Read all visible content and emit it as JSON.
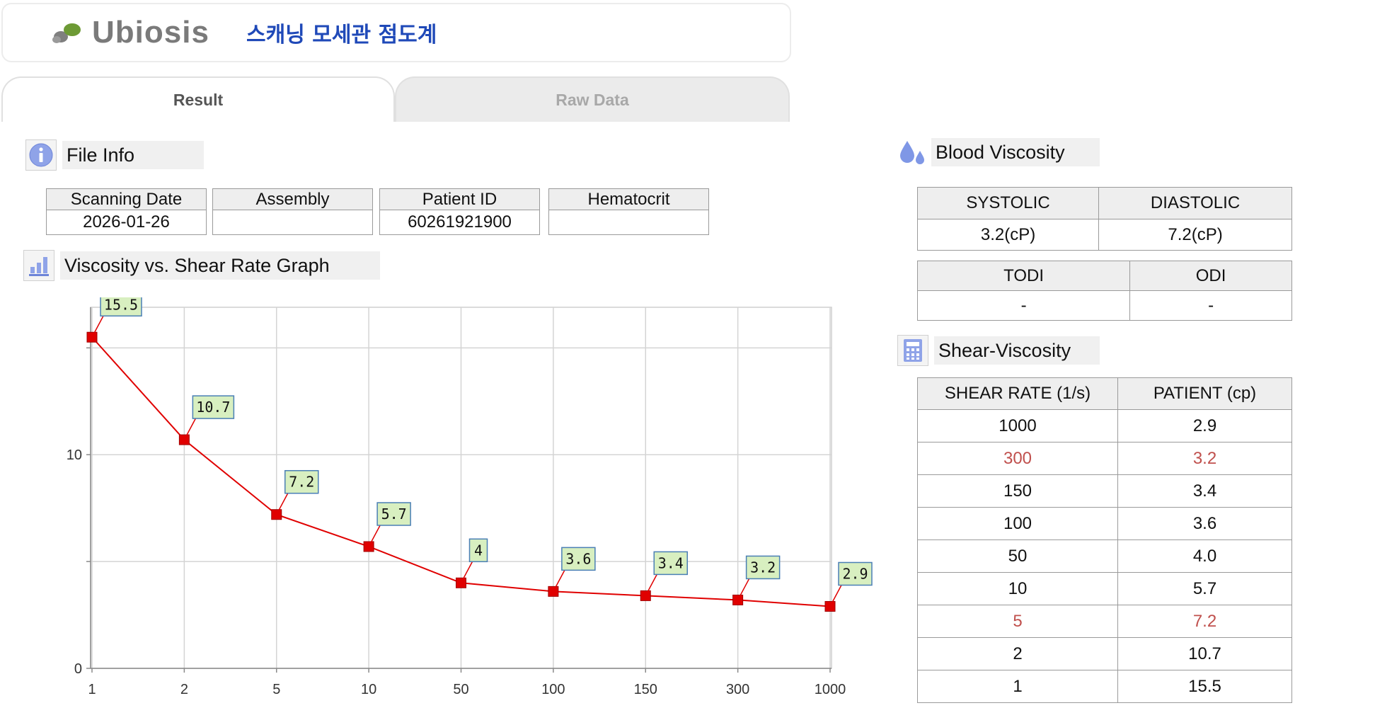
{
  "header": {
    "logo_text": "Ubiosis",
    "app_title": "스캐닝 모세관 점도계"
  },
  "tabs": [
    {
      "label": "Result",
      "active": true
    },
    {
      "label": "Raw Data",
      "active": false
    }
  ],
  "file_info": {
    "title": "File Info",
    "columns": [
      "Scanning Date",
      "Assembly",
      "Patient ID",
      "Hematocrit"
    ],
    "values": [
      "2026-01-26",
      "",
      "60261921900",
      ""
    ]
  },
  "graph_section": {
    "title": "Viscosity vs. Shear Rate Graph"
  },
  "chart_data": {
    "type": "line",
    "x_axis_type": "categorical",
    "categories": [
      "1",
      "2",
      "5",
      "10",
      "50",
      "100",
      "150",
      "300",
      "1000"
    ],
    "series": [
      {
        "values": [
          15.5,
          10.7,
          7.2,
          5.7,
          4,
          3.6,
          3.4,
          3.2,
          2.9
        ],
        "color": "#e00000"
      }
    ],
    "data_labels": [
      "15.5",
      "10.7",
      "7.2",
      "5.7",
      "4",
      "3.6",
      "3.4",
      "3.2",
      "2.9"
    ],
    "y_ticks": [
      "0",
      "10"
    ],
    "ylim": [
      0,
      16.9
    ],
    "grid": true,
    "title": "",
    "xlabel": "",
    "ylabel": ""
  },
  "blood_viscosity": {
    "title": "Blood Viscosity",
    "headers1": [
      "SYSTOLIC",
      "DIASTOLIC"
    ],
    "values1": [
      "3.2(cP)",
      "7.2(cP)"
    ],
    "headers2": [
      "TODI",
      "ODI"
    ],
    "values2": [
      "-",
      "-"
    ]
  },
  "shear_viscosity": {
    "title": "Shear-Viscosity",
    "headers": [
      "SHEAR RATE (1/s)",
      "PATIENT (cp)"
    ],
    "rows": [
      {
        "rate": "1000",
        "patient": "2.9",
        "highlight": false
      },
      {
        "rate": "300",
        "patient": "3.2",
        "highlight": true
      },
      {
        "rate": "150",
        "patient": "3.4",
        "highlight": false
      },
      {
        "rate": "100",
        "patient": "3.6",
        "highlight": false
      },
      {
        "rate": "50",
        "patient": "4.0",
        "highlight": false
      },
      {
        "rate": "10",
        "patient": "5.7",
        "highlight": false
      },
      {
        "rate": "5",
        "patient": "7.2",
        "highlight": true
      },
      {
        "rate": "2",
        "patient": "10.7",
        "highlight": false
      },
      {
        "rate": "1",
        "patient": "15.5",
        "highlight": false
      }
    ]
  },
  "colors": {
    "accent_title": "#1f49b8",
    "highlight_text": "#c0504d",
    "chart_line": "#e00000",
    "data_label_bg": "#d8efc0",
    "data_label_border": "#4a7fb5"
  }
}
